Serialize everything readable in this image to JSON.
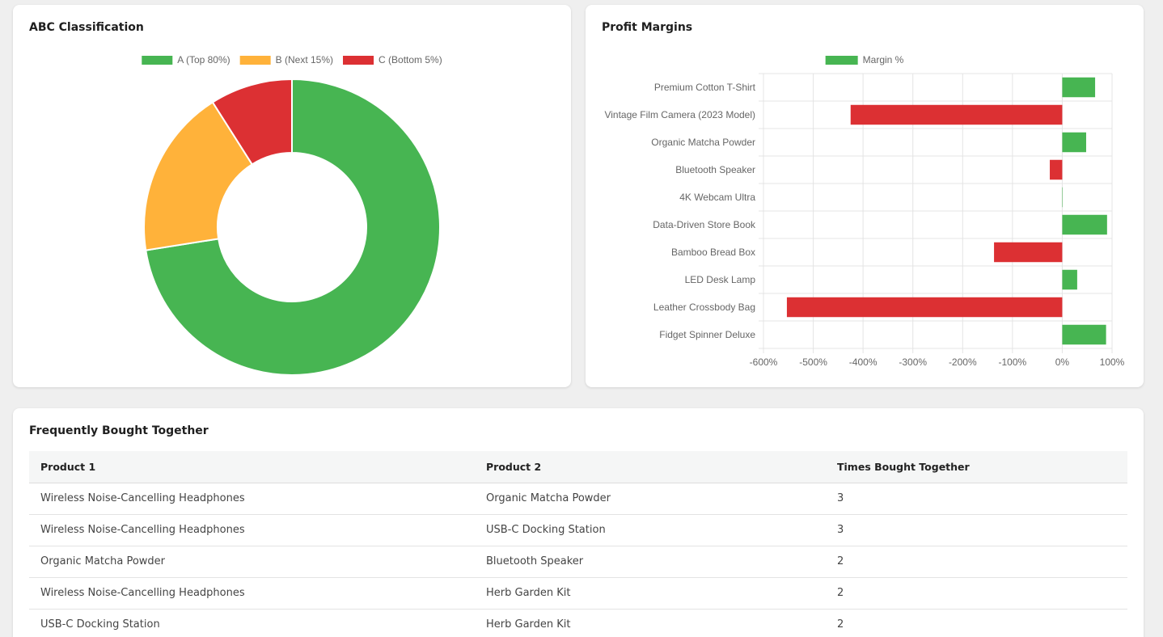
{
  "abc_card": {
    "title": "ABC Classification"
  },
  "profit_card": {
    "title": "Profit Margins"
  },
  "fbt_card": {
    "title": "Frequently Bought Together",
    "columns": [
      "Product 1",
      "Product 2",
      "Times Bought Together"
    ],
    "rows": [
      [
        "Wireless Noise-Cancelling Headphones",
        "Organic Matcha Powder",
        "3"
      ],
      [
        "Wireless Noise-Cancelling Headphones",
        "USB-C Docking Station",
        "3"
      ],
      [
        "Organic Matcha Powder",
        "Bluetooth Speaker",
        "2"
      ],
      [
        "Wireless Noise-Cancelling Headphones",
        "Herb Garden Kit",
        "2"
      ],
      [
        "USB-C Docking Station",
        "Herb Garden Kit",
        "2"
      ]
    ]
  },
  "colors": {
    "green": "#47b552",
    "orange": "#ffb23a",
    "red": "#dc3033"
  },
  "chart_data": [
    {
      "type": "pie",
      "variant": "doughnut",
      "title": "ABC Classification",
      "legend_position": "top",
      "categories": [
        "A (Top 80%)",
        "B (Next 15%)",
        "C (Bottom 5%)"
      ],
      "values": [
        72.5,
        18.5,
        9
      ],
      "colors": [
        "#47b552",
        "#ffb23a",
        "#dc3033"
      ]
    },
    {
      "type": "bar",
      "orientation": "horizontal",
      "title": "Profit Margins",
      "legend_position": "top",
      "series": [
        {
          "name": "Margin %",
          "color": "#47b552"
        }
      ],
      "categories": [
        "Premium Cotton T-Shirt",
        "Vintage Film Camera (2023 Model)",
        "Organic Matcha Powder",
        "Bluetooth Speaker",
        "4K Webcam Ultra",
        "Data-Driven Store Book",
        "Bamboo Bread Box",
        "LED Desk Lamp",
        "Leather Crossbody Bag",
        "Fidget Spinner Deluxe"
      ],
      "values": [
        66,
        -425,
        48,
        -25,
        0,
        90,
        -137,
        30,
        -553,
        88
      ],
      "positive_color": "#47b552",
      "negative_color": "#dc3033",
      "xlim": [
        -600,
        100
      ],
      "x_ticks": [
        -600,
        -500,
        -400,
        -300,
        -200,
        -100,
        0,
        100
      ],
      "x_tick_labels": [
        "-600%",
        "-500%",
        "-400%",
        "-300%",
        "-200%",
        "-100%",
        "0%",
        "100%"
      ],
      "grid": true
    }
  ]
}
